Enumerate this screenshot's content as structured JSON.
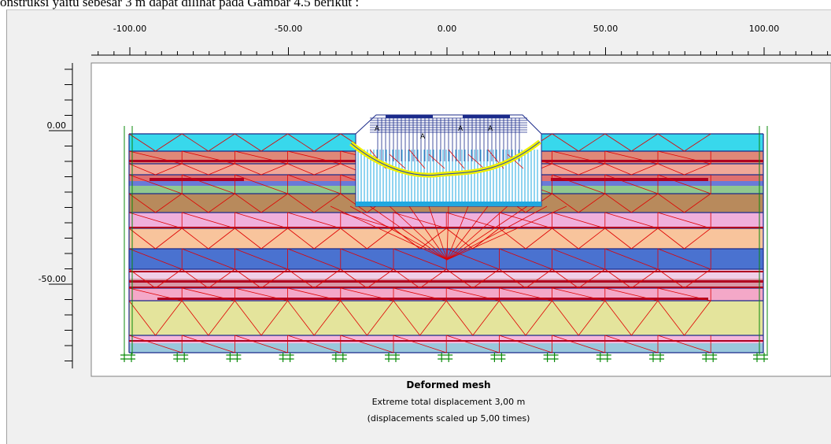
{
  "document": {
    "caption_fragment": "onstruksi yaitu sebesar 3 m dapat dilihat pada Gambar 4.5 berikut :"
  },
  "viewer": {
    "x_ruler": [
      {
        "label": "-100.00",
        "value": -100
      },
      {
        "label": "-50.00",
        "value": -50
      },
      {
        "label": "0.00",
        "value": 0
      },
      {
        "label": "50.00",
        "value": 50
      },
      {
        "label": "100.00",
        "value": 100
      }
    ],
    "y_ruler": [
      {
        "label": "0.00",
        "value": 0
      },
      {
        "label": "-50.00",
        "value": -50
      }
    ],
    "title": "Deformed mesh",
    "result_line": "Extreme total displacement 3,00 m",
    "scale_line": "(displacements scaled up 5,00 times)"
  },
  "colors": {
    "layer_cyan": "#38d8ec",
    "layer_salmon": "#e08878",
    "layer_brown": "#b88a5c",
    "layer_pink": "#f0b0dc",
    "layer_peach": "#f8c49c",
    "layer_blue": "#4a72d0",
    "layer_khaki": "#e4e49c",
    "mesh_red": "#e00000",
    "boundary_green": "#0a8a0a",
    "structure_navy": "#1a2a8a",
    "piles_cyan": "#20a8e0",
    "slip_yellow": "#f0f000"
  }
}
